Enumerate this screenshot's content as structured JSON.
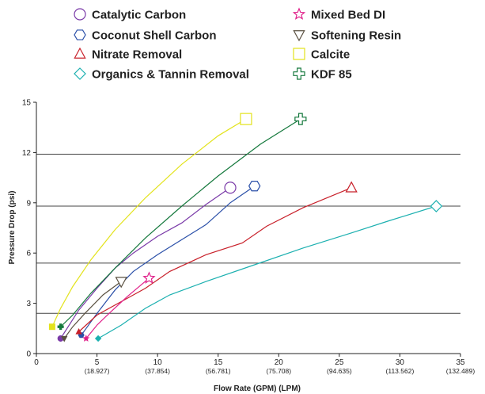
{
  "chart_data": {
    "type": "line",
    "title": "",
    "xlabel": "Flow Rate (GPM) (LPM)",
    "ylabel": "Pressure Drop (psi)",
    "xlim": [
      0,
      35
    ],
    "ylim": [
      0,
      15
    ],
    "grid": "horizontal lines at pressure-drop reference values",
    "legend_placement": "top",
    "x_ticks": [
      {
        "value": 0,
        "label": "0",
        "sub": ""
      },
      {
        "value": 5,
        "label": "5",
        "sub": "(18.927)"
      },
      {
        "value": 10,
        "label": "10",
        "sub": "(37.854)"
      },
      {
        "value": 15,
        "label": "15",
        "sub": "(56.781)"
      },
      {
        "value": 20,
        "label": "20",
        "sub": "(75.708)"
      },
      {
        "value": 25,
        "label": "25",
        "sub": "(94.635)"
      },
      {
        "value": 30,
        "label": "30",
        "sub": "(113.562)"
      },
      {
        "value": 35,
        "label": "35",
        "sub": "(132.489)"
      }
    ],
    "y_ticks": [
      {
        "value": 0,
        "label": "0"
      },
      {
        "value": 3,
        "label": "3"
      },
      {
        "value": 6,
        "label": "6"
      },
      {
        "value": 9,
        "label": "9"
      },
      {
        "value": 12,
        "label": "12"
      },
      {
        "value": 15,
        "label": "15"
      }
    ],
    "grid_lines": [
      2.4,
      5.4,
      8.8,
      11.9
    ],
    "series": [
      {
        "name": "Catalytic Carbon",
        "color": "#7a3aa8",
        "marker": "circle",
        "x": [
          2.0,
          3.5,
          5.0,
          6.5,
          8.0,
          10.0,
          12.0,
          14.0,
          16.0
        ],
        "y": [
          0.9,
          2.6,
          3.9,
          5.1,
          6.0,
          7.0,
          7.8,
          8.9,
          9.9
        ]
      },
      {
        "name": "Coconut Shell Carbon",
        "color": "#2a4fa8",
        "marker": "hexagon",
        "x": [
          3.7,
          5.0,
          6.5,
          8.0,
          10.0,
          12.0,
          14.0,
          16.0,
          18.0
        ],
        "y": [
          1.1,
          2.4,
          3.8,
          4.9,
          5.9,
          6.8,
          7.7,
          9.0,
          10.0
        ]
      },
      {
        "name": "Nitrate Removal",
        "color": "#c8202a",
        "marker": "triangle-up",
        "x": [
          3.5,
          5.0,
          7.0,
          9.0,
          11.0,
          14.0,
          17.0,
          19.0,
          22.0,
          26.0
        ],
        "y": [
          1.3,
          2.3,
          3.1,
          3.9,
          4.9,
          5.9,
          6.6,
          7.6,
          8.7,
          9.9
        ]
      },
      {
        "name": "Organics & Tannin Removal",
        "color": "#1cb0b0",
        "marker": "diamond",
        "x": [
          5.1,
          7.0,
          9.0,
          11.0,
          14.0,
          18.0,
          22.0,
          26.0,
          29.0,
          33.0
        ],
        "y": [
          0.9,
          1.7,
          2.7,
          3.5,
          4.3,
          5.3,
          6.3,
          7.2,
          7.9,
          8.8
        ]
      },
      {
        "name": "Mixed Bed DI",
        "color": "#e0208a",
        "marker": "star",
        "x": [
          4.1,
          5.0,
          6.0,
          7.5,
          9.3
        ],
        "y": [
          0.9,
          1.7,
          2.4,
          3.4,
          4.5
        ]
      },
      {
        "name": "Softening Resin",
        "color": "#5a5040",
        "marker": "triangle-down",
        "x": [
          2.3,
          3.0,
          4.0,
          5.5,
          7.0
        ],
        "y": [
          0.9,
          1.6,
          2.4,
          3.5,
          4.3
        ]
      },
      {
        "name": "Calcite",
        "color": "#e3e31c",
        "marker": "square",
        "x": [
          1.3,
          2.0,
          3.0,
          4.5,
          6.5,
          9.0,
          12.0,
          15.0,
          17.3
        ],
        "y": [
          1.6,
          2.7,
          4.0,
          5.6,
          7.4,
          9.3,
          11.3,
          13.0,
          14.0
        ]
      },
      {
        "name": "KDF 85",
        "color": "#14783c",
        "marker": "cross",
        "x": [
          2.0,
          3.0,
          4.5,
          6.5,
          9.0,
          12.0,
          15.0,
          18.5,
          21.8
        ],
        "y": [
          1.6,
          2.3,
          3.6,
          5.1,
          6.9,
          8.8,
          10.6,
          12.5,
          14.0
        ]
      }
    ]
  }
}
